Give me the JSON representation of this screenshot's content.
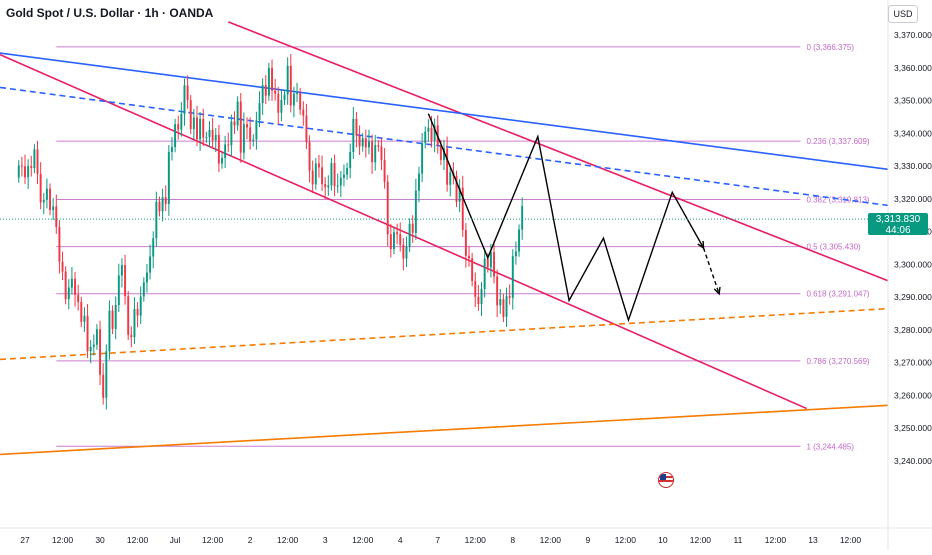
{
  "header": {
    "title": "Gold Spot / U.S. Dollar · 1h · OANDA",
    "currency_button": "USD"
  },
  "price_tag": {
    "price": "3,313.830",
    "countdown": "44:06"
  },
  "fib_levels": [
    {
      "ratio": 0,
      "price": 3366.375,
      "label": "0 (3,366.375)"
    },
    {
      "ratio": 0.236,
      "price": 3337.609,
      "label": "0.236 (3,337.609)"
    },
    {
      "ratio": 0.382,
      "price": 3319.813,
      "label": "0.382 (3,319.813)"
    },
    {
      "ratio": 0.5,
      "price": 3305.43,
      "label": "0.5 (3,305.430)"
    },
    {
      "ratio": 0.618,
      "price": 3291.047,
      "label": "0.618 (3,291.047)"
    },
    {
      "ratio": 0.786,
      "price": 3270.569,
      "label": "0.786 (3,270.569)"
    },
    {
      "ratio": 1,
      "price": 3244.485,
      "label": "1 (3,244.485)"
    }
  ],
  "colors": {
    "up": "#089981",
    "down": "#f23645",
    "fib": "#c267c8",
    "channel": "#e91e63",
    "trend_blue": "#2962ff",
    "support_orange": "#f57c00",
    "projection": "#000000"
  },
  "chart_data": {
    "type": "candlestick",
    "title": "Gold Spot / U.S. Dollar · 1h · OANDA",
    "y_axis": {
      "ticks": [
        3370,
        3360,
        3350,
        3340,
        3330,
        3320,
        3310,
        3300,
        3290,
        3280,
        3270,
        3260,
        3250,
        3240
      ],
      "tick_labels": [
        "3,370.000",
        "3,360.000",
        "3,350.000",
        "3,340.000",
        "3,330.000",
        "3,320.000",
        "3,310.000",
        "3,300.000",
        "3,290.000",
        "3,280.000",
        "3,270.000",
        "3,260.000",
        "3,250.000",
        "3,240.000"
      ],
      "range": [
        3232,
        3374
      ]
    },
    "x_axis": {
      "tick_labels": [
        "27",
        "12:00",
        "30",
        "12:00",
        "Jul",
        "12:00",
        "2",
        "12:00",
        "3",
        "12:00",
        "4",
        "7",
        "12:00",
        "8",
        "12:00",
        "9",
        "12:00",
        "10",
        "12:00",
        "11",
        "12:00",
        "13",
        "12:00"
      ],
      "tick_index": [
        2,
        14,
        26,
        38,
        50,
        62,
        74,
        86,
        98,
        110,
        122,
        134,
        146,
        158,
        170,
        182,
        194,
        206,
        218,
        230,
        242,
        254,
        266
      ],
      "range": [
        -6,
        278
      ]
    },
    "fib_retracement": {
      "high": 3366.375,
      "low": 3244.485,
      "x_start": 12,
      "x_end": 250
    },
    "trend_lines": [
      {
        "name": "upper-channel",
        "color": "#e91e63",
        "points": [
          [
            67,
            3374
          ],
          [
            278,
            3295
          ]
        ]
      },
      {
        "name": "lower-channel",
        "color": "#e91e63",
        "points": [
          [
            -6,
            3364
          ],
          [
            252,
            3256
          ]
        ]
      },
      {
        "name": "blue-resistance",
        "color": "#2962ff",
        "style": "solid",
        "points": [
          [
            -6,
            3364.5
          ],
          [
            278,
            3329
          ]
        ]
      },
      {
        "name": "blue-resistance-dashed",
        "color": "#2962ff",
        "style": "dashed",
        "points": [
          [
            -6,
            3354
          ],
          [
            278,
            3318
          ]
        ]
      },
      {
        "name": "orange-support",
        "color": "#f57c00",
        "style": "solid",
        "points": [
          [
            -6,
            3242
          ],
          [
            278,
            3257
          ]
        ]
      },
      {
        "name": "orange-support-dashed",
        "color": "#f57c00",
        "style": "dashed",
        "points": [
          [
            -6,
            3271
          ],
          [
            278,
            3286.5
          ]
        ]
      }
    ],
    "wave_path": {
      "solid": [
        [
          131,
          3346
        ],
        [
          150,
          3302
        ],
        [
          166,
          3339
        ],
        [
          176,
          3289
        ],
        [
          187,
          3308
        ],
        [
          195,
          3283
        ],
        [
          209,
          3322
        ],
        [
          219,
          3305
        ]
      ],
      "dashed": [
        [
          219,
          3305
        ],
        [
          224,
          3291
        ]
      ]
    },
    "candles": {
      "x_start": 0,
      "close": [
        3330.2,
        3329.9,
        3326.6,
        3330.0,
        3329.4,
        3335.1,
        3327.6,
        3318.9,
        3319.7,
        3323.1,
        3316.6,
        3317.7,
        3311.4,
        3300.8,
        3297.8,
        3289.4,
        3292.9,
        3295.6,
        3290.7,
        3288.5,
        3282.5,
        3284.3,
        3273.5,
        3274.8,
        3275.5,
        3280.2,
        3266.3,
        3259.3,
        3273.5,
        3285.9,
        3280.3,
        3287.6,
        3296.6,
        3299.8,
        3290.3,
        3278.5,
        3277.8,
        3286.4,
        3284.4,
        3290.2,
        3294.5,
        3297.5,
        3302.4,
        3308.0,
        3319.1,
        3316.2,
        3320.5,
        3318.4,
        3334.3,
        3335.8,
        3342.8,
        3341.1,
        3345.9,
        3354.6,
        3350.1,
        3341.3,
        3344.8,
        3338.2,
        3344.4,
        3338.7,
        3338.9,
        3341.1,
        3337.9,
        3339.5,
        3330.8,
        3332.5,
        3336.6,
        3336.4,
        3343.6,
        3342.4,
        3349.7,
        3334.1,
        3342.8,
        3341.8,
        3337.6,
        3338.1,
        3344.0,
        3349.2,
        3354.7,
        3351.5,
        3359.9,
        3353.0,
        3352.1,
        3346.3,
        3350.2,
        3351.8,
        3360.6,
        3348.5,
        3352.1,
        3352.3,
        3347.2,
        3345.4,
        3337.3,
        3328.6,
        3324.4,
        3330.8,
        3329.6,
        3324.5,
        3323.5,
        3324.1,
        3330.9,
        3323.9,
        3324.1,
        3326.4,
        3327.4,
        3329.4,
        3334.3,
        3344.4,
        3339.3,
        3336.0,
        3338.5,
        3335.7,
        3337.5,
        3331.2,
        3336.4,
        3336.0,
        3331.9,
        3325.2,
        3309.2,
        3304.7,
        3309.8,
        3309.2,
        3306.0,
        3301.8,
        3305.4,
        3312.4,
        3309.6,
        3322.5,
        3327.7,
        3337.0,
        3340.5,
        3341.7,
        3337.8,
        3342.4,
        3336.4,
        3331.9,
        3335.4,
        3324.3,
        3328.1,
        3327.0,
        3319.1,
        3323.4,
        3310.5,
        3302.6,
        3301.9,
        3294.9,
        3290.1,
        3287.9,
        3292.5,
        3301.8,
        3299.1,
        3303.7,
        3296.3,
        3287.5,
        3289.4,
        3284.0,
        3290.3,
        3289.8,
        3302.5,
        3303.9,
        3310.6,
        3317.8
      ],
      "open": [
        3326.5,
        3330.2,
        3329.9,
        3326.6,
        3330.0,
        3329.4,
        3335.1,
        3327.6,
        3318.9,
        3319.7,
        3323.1,
        3316.6,
        3317.7,
        3311.4,
        3300.8,
        3297.8,
        3289.4,
        3292.9,
        3295.6,
        3290.7,
        3288.5,
        3282.5,
        3284.3,
        3273.5,
        3274.8,
        3275.5,
        3280.2,
        3266.3,
        3259.3,
        3273.5,
        3285.9,
        3280.3,
        3287.6,
        3296.6,
        3299.8,
        3290.3,
        3278.5,
        3277.8,
        3286.4,
        3284.4,
        3290.2,
        3294.5,
        3297.5,
        3302.4,
        3308.0,
        3319.1,
        3316.2,
        3320.5,
        3318.4,
        3334.3,
        3335.8,
        3342.8,
        3341.1,
        3345.9,
        3354.6,
        3350.1,
        3341.3,
        3344.8,
        3338.2,
        3344.4,
        3338.7,
        3338.9,
        3341.1,
        3337.9,
        3339.5,
        3330.8,
        3332.5,
        3336.6,
        3336.4,
        3343.6,
        3342.4,
        3349.7,
        3334.1,
        3342.8,
        3341.8,
        3337.6,
        3338.1,
        3344.0,
        3349.2,
        3354.7,
        3351.5,
        3359.9,
        3353.0,
        3352.1,
        3346.3,
        3350.2,
        3351.8,
        3360.6,
        3348.5,
        3352.1,
        3352.3,
        3347.2,
        3345.4,
        3337.3,
        3328.6,
        3324.4,
        3330.8,
        3329.6,
        3324.5,
        3323.5,
        3324.1,
        3330.9,
        3323.9,
        3324.1,
        3326.4,
        3327.4,
        3329.4,
        3334.3,
        3344.4,
        3339.3,
        3336.0,
        3338.5,
        3335.7,
        3337.5,
        3331.2,
        3336.4,
        3336.0,
        3331.9,
        3325.2,
        3309.2,
        3304.7,
        3309.8,
        3309.2,
        3306.0,
        3301.8,
        3305.4,
        3312.4,
        3309.6,
        3322.5,
        3327.7,
        3337.0,
        3340.5,
        3341.7,
        3337.8,
        3342.4,
        3336.4,
        3331.9,
        3335.4,
        3324.3,
        3328.1,
        3327.0,
        3319.1,
        3323.4,
        3310.5,
        3302.6,
        3301.9,
        3294.9,
        3290.1,
        3287.9,
        3292.5,
        3301.8,
        3299.1,
        3303.7,
        3296.3,
        3287.5,
        3289.4,
        3284.0,
        3290.3,
        3289.8,
        3302.5,
        3303.9,
        3310.6
      ]
    }
  }
}
